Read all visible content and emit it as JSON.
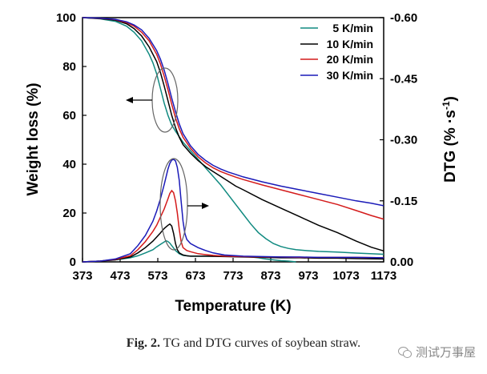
{
  "chart_data": {
    "type": "line",
    "title": "",
    "xlabel": "Temperature (K)",
    "ylabel": "Weight loss (%)",
    "y2label_parts": {
      "main": "DTG (% ",
      "dot": "·",
      "unit": "s",
      "exp": "-1",
      "close": ")"
    },
    "xlim": [
      373,
      1173
    ],
    "ylim": [
      0,
      100
    ],
    "y2lim": [
      0.0,
      -0.6
    ],
    "x_ticks": [
      "373",
      "473",
      "573",
      "673",
      "773",
      "873",
      "973",
      "1073",
      "1173"
    ],
    "y_ticks": [
      "0",
      "20",
      "40",
      "60",
      "80",
      "100"
    ],
    "y2_ticks": [
      "0.00",
      "-0.15",
      "-0.30",
      "-0.45",
      "-0.60"
    ],
    "legend_position": "top-right",
    "tg_series": [
      {
        "name": "5 K/min",
        "color": "#108a80",
        "x": [
          373,
          420,
          460,
          490,
          510,
          530,
          550,
          560,
          570,
          580,
          590,
          600,
          610,
          620,
          640,
          660,
          680,
          700,
          720,
          740,
          760,
          780,
          800,
          820,
          840,
          860,
          880,
          900,
          920,
          940,
          970,
          1000,
          1050,
          1100,
          1173
        ],
        "y": [
          100,
          99.5,
          98.5,
          96.5,
          94,
          90.5,
          85,
          81.5,
          77,
          71,
          65,
          60,
          56,
          53.5,
          49,
          45.5,
          42,
          38.5,
          35,
          31.5,
          27.5,
          23.5,
          19.5,
          15.5,
          12,
          9.5,
          7.5,
          6.3,
          5.5,
          5,
          4.6,
          4.3,
          4,
          3.6,
          3.1
        ]
      },
      {
        "name": "10 K/min",
        "color": "#000000",
        "x": [
          373,
          420,
          460,
          490,
          510,
          530,
          550,
          570,
          580,
          590,
          600,
          610,
          620,
          630,
          640,
          660,
          680,
          700,
          720,
          740,
          760,
          780,
          800,
          850,
          900,
          950,
          1000,
          1050,
          1100,
          1140,
          1173
        ],
        "y": [
          100,
          99.6,
          99,
          97.5,
          95.5,
          92.5,
          88,
          82,
          77.5,
          72,
          66,
          60,
          55,
          51,
          48,
          44.5,
          41.5,
          39,
          37,
          35,
          33,
          31,
          29.5,
          25.5,
          22,
          18.5,
          15,
          12,
          8.5,
          6,
          4.5
        ]
      },
      {
        "name": "20 K/min",
        "color": "#d41b1b",
        "x": [
          373,
          420,
          460,
          490,
          510,
          530,
          550,
          570,
          580,
          590,
          600,
          610,
          620,
          630,
          640,
          660,
          680,
          700,
          720,
          740,
          760,
          780,
          800,
          850,
          900,
          950,
          1000,
          1050,
          1100,
          1140,
          1173
        ],
        "y": [
          100,
          99.7,
          99.2,
          98,
          96.5,
          94,
          90.5,
          85,
          81,
          76,
          70.5,
          64.5,
          59,
          54.5,
          51,
          46.5,
          43,
          40.5,
          38.5,
          37,
          35.8,
          34.7,
          33.7,
          31.5,
          29.5,
          27.5,
          25.5,
          23.5,
          21,
          19,
          17.5
        ]
      },
      {
        "name": "30 K/min",
        "color": "#1a1ab8",
        "x": [
          373,
          420,
          460,
          490,
          510,
          530,
          550,
          570,
          580,
          590,
          600,
          610,
          620,
          630,
          640,
          660,
          680,
          700,
          720,
          740,
          760,
          780,
          800,
          850,
          900,
          950,
          1000,
          1050,
          1100,
          1140,
          1173
        ],
        "y": [
          100,
          99.8,
          99.3,
          98.3,
          97,
          95,
          91.5,
          86.5,
          83,
          78.5,
          73,
          67,
          61.5,
          56.5,
          52.5,
          47.5,
          44,
          41.5,
          39.5,
          38,
          36.8,
          35.8,
          34.8,
          32.8,
          31,
          29.5,
          28,
          26.5,
          25,
          24,
          23
        ]
      }
    ],
    "dtg_series": [
      {
        "name": "5 K/min",
        "color": "#108a80",
        "x": [
          373,
          420,
          460,
          500,
          520,
          540,
          560,
          570,
          580,
          590,
          595,
          600,
          605,
          610,
          615,
          620,
          630,
          640,
          660,
          680,
          700,
          720,
          740,
          760,
          780,
          800,
          820,
          840,
          860,
          880,
          900,
          920,
          940
        ],
        "y": [
          0,
          -0.002,
          -0.005,
          -0.01,
          -0.015,
          -0.022,
          -0.03,
          -0.037,
          -0.043,
          -0.049,
          -0.052,
          -0.05,
          -0.046,
          -0.04,
          -0.034,
          -0.028,
          -0.02,
          -0.016,
          -0.014,
          -0.014,
          -0.014,
          -0.014,
          -0.015,
          -0.015,
          -0.014,
          -0.013,
          -0.012,
          -0.01,
          -0.007,
          -0.005,
          -0.003,
          -0.002,
          0
        ]
      },
      {
        "name": "10 K/min",
        "color": "#000000",
        "x": [
          373,
          420,
          460,
          500,
          520,
          540,
          560,
          570,
          580,
          590,
          600,
          605,
          610,
          615,
          620,
          625,
          630,
          640,
          650,
          660,
          680,
          700,
          750,
          800,
          850,
          900,
          950,
          1000,
          1050,
          1100,
          1173
        ],
        "y": [
          0,
          -0.002,
          -0.005,
          -0.012,
          -0.022,
          -0.035,
          -0.051,
          -0.061,
          -0.071,
          -0.082,
          -0.09,
          -0.093,
          -0.088,
          -0.07,
          -0.045,
          -0.03,
          -0.022,
          -0.017,
          -0.015,
          -0.014,
          -0.014,
          -0.014,
          -0.013,
          -0.012,
          -0.011,
          -0.01,
          -0.01,
          -0.009,
          -0.009,
          -0.008,
          -0.007
        ]
      },
      {
        "name": "20 K/min",
        "color": "#d41b1b",
        "x": [
          373,
          420,
          460,
          500,
          520,
          540,
          560,
          570,
          580,
          590,
          600,
          605,
          610,
          615,
          620,
          625,
          630,
          635,
          640,
          650,
          660,
          680,
          700,
          720,
          750,
          800,
          850,
          900,
          950,
          1000,
          1050,
          1100,
          1173
        ],
        "y": [
          0,
          -0.002,
          -0.006,
          -0.015,
          -0.03,
          -0.05,
          -0.075,
          -0.09,
          -0.11,
          -0.13,
          -0.155,
          -0.168,
          -0.175,
          -0.17,
          -0.15,
          -0.12,
          -0.08,
          -0.05,
          -0.035,
          -0.028,
          -0.025,
          -0.02,
          -0.018,
          -0.016,
          -0.014,
          -0.013,
          -0.012,
          -0.012,
          -0.011,
          -0.011,
          -0.011,
          -0.011,
          -0.01
        ]
      },
      {
        "name": "30 K/min",
        "color": "#1a1ab8",
        "x": [
          373,
          420,
          460,
          500,
          520,
          540,
          560,
          570,
          580,
          590,
          600,
          605,
          610,
          615,
          620,
          625,
          630,
          635,
          640,
          645,
          650,
          660,
          680,
          700,
          720,
          750,
          800,
          850,
          900,
          950,
          1000,
          1050,
          1100,
          1173
        ],
        "y": [
          0,
          -0.002,
          -0.007,
          -0.02,
          -0.04,
          -0.065,
          -0.1,
          -0.125,
          -0.155,
          -0.19,
          -0.228,
          -0.242,
          -0.25,
          -0.252,
          -0.248,
          -0.232,
          -0.2,
          -0.15,
          -0.1,
          -0.07,
          -0.055,
          -0.045,
          -0.035,
          -0.028,
          -0.022,
          -0.017,
          -0.014,
          -0.013,
          -0.012,
          -0.012,
          -0.011,
          -0.011,
          -0.011,
          -0.01
        ]
      }
    ],
    "annotations": [
      "ellipse-arrow-left-to-TG-axis",
      "ellipse-arrow-right-to-DTG-axis"
    ]
  },
  "caption": {
    "figure_label": "Fig. 2.",
    "text": "TG and DTG curves of soybean straw."
  },
  "watermark": {
    "text": "测试万事屋",
    "icon": "wechat-icon"
  }
}
